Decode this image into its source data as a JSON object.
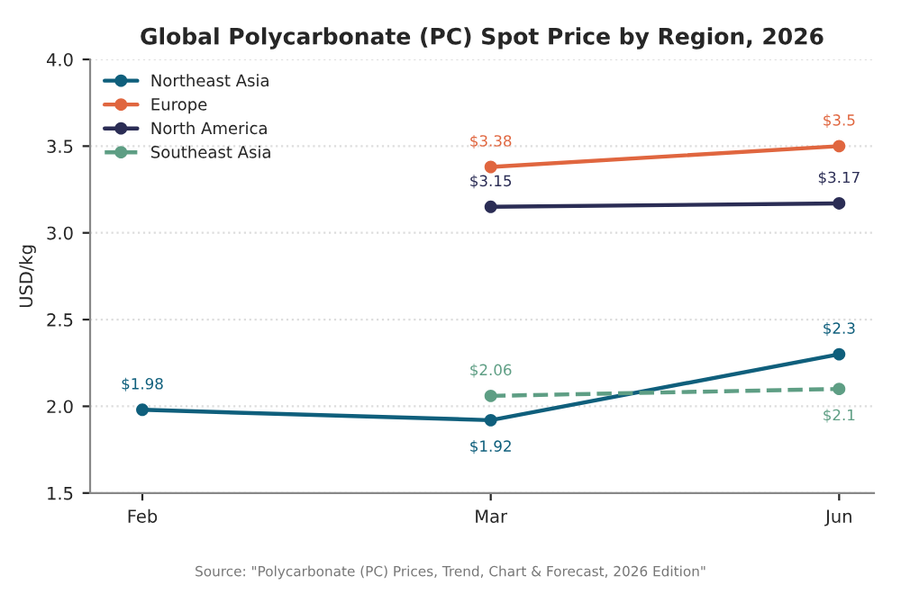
{
  "chart_data": {
    "type": "line",
    "title": "Global Polycarbonate (PC) Spot Price by Region, 2026",
    "ylabel": "USD/kg",
    "categories": [
      "Feb",
      "Mar",
      "Jun"
    ],
    "series": [
      {
        "name": "Northeast Asia",
        "color": "#0f5f7c",
        "values": [
          1.98,
          1.92,
          2.3
        ],
        "value_labels": [
          "$1.98",
          "$1.92",
          "$2.3"
        ]
      },
      {
        "name": "Europe",
        "color": "#e0663f",
        "values": [
          null,
          3.38,
          3.5
        ],
        "value_labels": [
          null,
          "$3.38",
          "$3.5"
        ]
      },
      {
        "name": "North America",
        "color": "#2b2d55",
        "values": [
          null,
          3.15,
          3.17
        ],
        "value_labels": [
          null,
          "$3.15",
          "$3.17"
        ]
      },
      {
        "name": "Southeast Asia",
        "color": "#5e9e84",
        "values": [
          null,
          2.06,
          2.1
        ],
        "value_labels": [
          null,
          "$2.06",
          "$2.1"
        ],
        "line_style": "dashed"
      }
    ],
    "ylim": [
      1.5,
      4.0
    ],
    "yticks": [
      1.5,
      {
        "value": 2,
        "label": "2.0"
      },
      2.5,
      {
        "value": 3,
        "label": "3.0"
      },
      3.5,
      {
        "value": 4,
        "label": "4.0"
      }
    ],
    "grid": "y",
    "legend": "top left",
    "marker": "circle",
    "line_style": "solid",
    "annotations": [
      "Source: \"Polycarbonate (PC) Prices, Trend, Chart & Forecast, 2026 Edition\""
    ]
  }
}
